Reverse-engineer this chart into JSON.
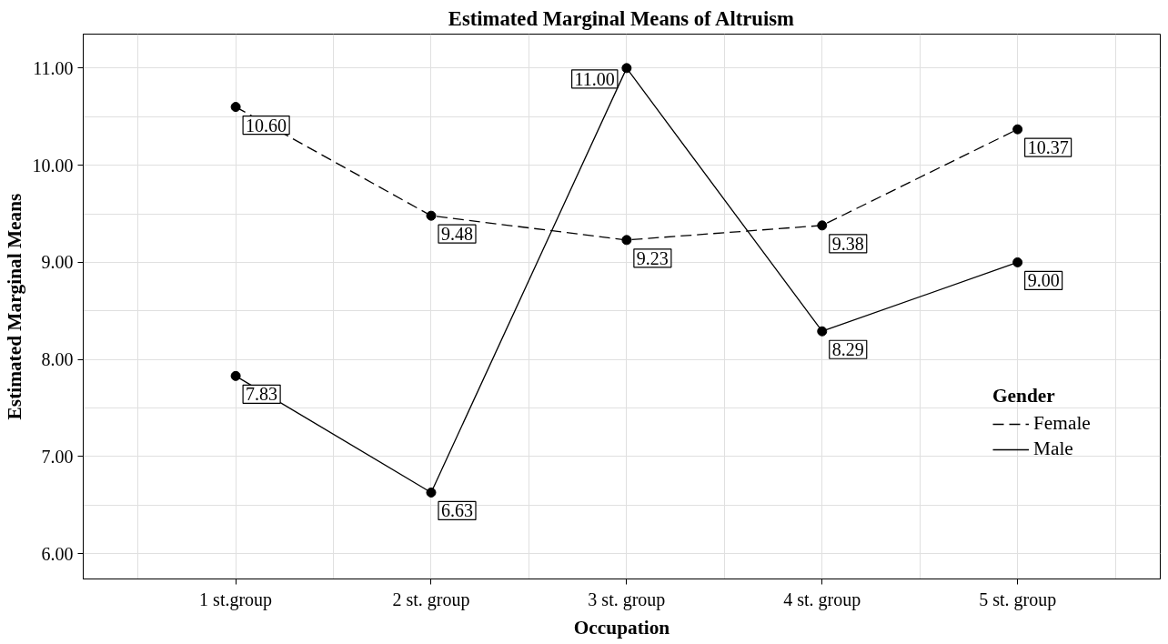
{
  "chart_data": {
    "type": "line",
    "title": "Estimated Marginal Means of Altruism",
    "xlabel": "Occupation",
    "ylabel": "Estimated Marginal Means",
    "legend_title": "Gender",
    "categories": [
      "1 st.group",
      "2 st. group",
      "3 st. group",
      "4 st. group",
      "5 st. group"
    ],
    "series": [
      {
        "name": "Female",
        "color": "#000000",
        "line_style": "dashed",
        "values": [
          10.6,
          9.48,
          9.23,
          9.38,
          10.37
        ],
        "value_labels": [
          "10.60",
          "9.48",
          "9.23",
          "9.38",
          "10.37"
        ]
      },
      {
        "name": "Male",
        "color": "#000000",
        "line_style": "solid",
        "values": [
          7.83,
          6.63,
          11.0,
          8.29,
          9.0
        ],
        "value_labels": [
          "7.83",
          "6.63",
          "11.00",
          "8.29",
          "9.00"
        ]
      }
    ],
    "ylim": [
      5.74,
      11.35
    ],
    "yticks": [
      {
        "value": 6,
        "label": "6.00"
      },
      {
        "value": 7,
        "label": "7.00"
      },
      {
        "value": 8,
        "label": "8.00"
      },
      {
        "value": 9,
        "label": "9.00"
      },
      {
        "value": 10,
        "label": "10.00"
      },
      {
        "value": 11,
        "label": "11.00"
      }
    ],
    "grid": true,
    "legend": "right",
    "marker": "circle"
  }
}
